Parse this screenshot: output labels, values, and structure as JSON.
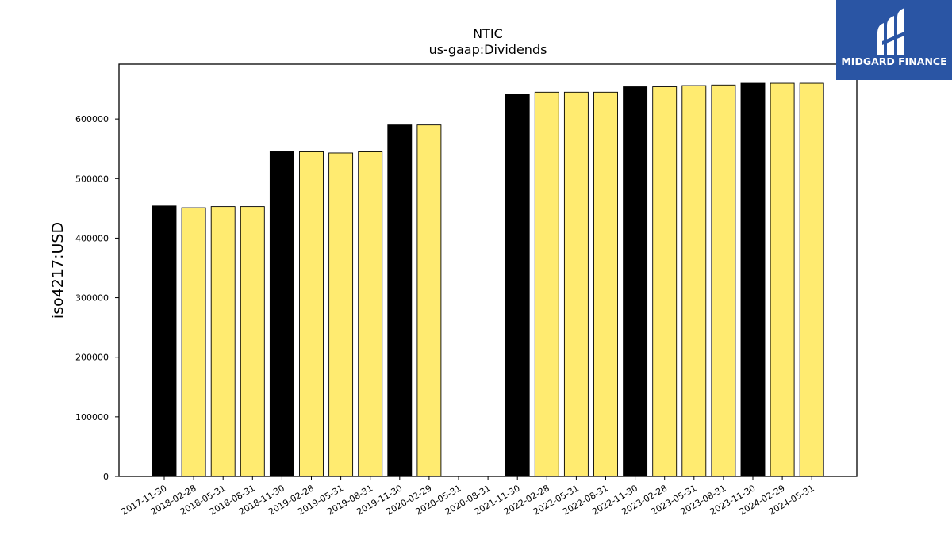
{
  "chart_data": {
    "type": "bar",
    "title": "NTIC",
    "subtitle": "us-gaap:Dividends",
    "ylabel": "iso4217:USD",
    "xlabel": "",
    "ylim": [
      0,
      692000
    ],
    "yticks": [
      0,
      100000,
      200000,
      300000,
      400000,
      500000,
      600000
    ],
    "ytick_labels": [
      "0",
      "100000",
      "200000",
      "300000",
      "400000",
      "500000",
      "600000"
    ],
    "categories": [
      "2017-11-30",
      "2018-02-28",
      "2018-05-31",
      "2018-08-31",
      "2018-11-30",
      "2019-02-28",
      "2019-05-31",
      "2019-08-31",
      "2019-11-30",
      "2020-02-29",
      "2020-05-31",
      "2020-08-31",
      "2021-11-30",
      "2022-02-28",
      "2022-05-31",
      "2022-08-31",
      "2022-11-30",
      "2023-02-28",
      "2023-05-31",
      "2023-08-31",
      "2023-11-30",
      "2024-02-29",
      "2024-05-31"
    ],
    "values": [
      454000,
      451000,
      453000,
      453000,
      545000,
      545000,
      543000,
      545000,
      590000,
      590000,
      0,
      0,
      642000,
      645000,
      645000,
      645000,
      654000,
      654000,
      656000,
      657000,
      660000,
      660000,
      660000
    ],
    "highlight": [
      true,
      false,
      false,
      false,
      true,
      false,
      false,
      false,
      true,
      false,
      false,
      false,
      true,
      false,
      false,
      false,
      true,
      false,
      false,
      false,
      true,
      false,
      false
    ],
    "colors": {
      "highlight": "#000000",
      "normal": "#ffeb70",
      "edge": "#000000"
    },
    "grid": false,
    "legend": "none"
  },
  "logo": {
    "text": "MIDGARD FINANCE",
    "icon": "midgard-logo-icon",
    "background": "#2a55a4"
  }
}
